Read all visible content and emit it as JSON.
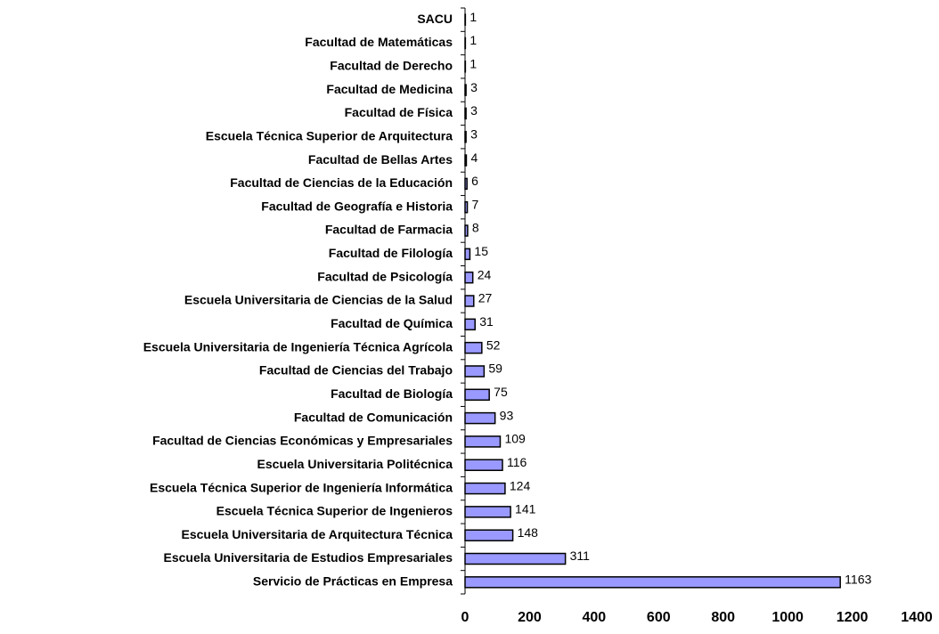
{
  "chart_data": {
    "type": "barh",
    "categories": [
      "SACU",
      "Facultad de Matemáticas",
      "Facultad de Derecho",
      "Facultad de Medicina",
      "Facultad de Física",
      "Escuela Técnica Superior de Arquitectura",
      "Facultad de Bellas Artes",
      "Facultad de Ciencias de la Educación",
      "Facultad de Geografía e Historia",
      "Facultad de Farmacia",
      "Facultad de Filología",
      "Facultad de Psicología",
      "Escuela Universitaria de Ciencias de la Salud",
      "Facultad de Química",
      "Escuela Universitaria de Ingeniería Técnica Agrícola",
      "Facultad de Ciencias del Trabajo",
      "Facultad de Biología",
      "Facultad de Comunicación",
      "Facultad de Ciencias Económicas y Empresariales",
      "Escuela Universitaria Politécnica",
      "Escuela Técnica Superior de Ingeniería Informática",
      "Escuela Técnica Superior de Ingenieros",
      "Escuela Universitaria de Arquitectura Técnica",
      "Escuela Universitaria de Estudios Empresariales",
      "Servicio de Prácticas en Empresa"
    ],
    "values": [
      1,
      1,
      1,
      3,
      3,
      3,
      4,
      6,
      7,
      8,
      15,
      24,
      27,
      31,
      52,
      59,
      75,
      93,
      109,
      116,
      124,
      141,
      148,
      311,
      1163
    ],
    "color": "#9999ff",
    "xlim": [
      0,
      1400
    ],
    "xticks": [
      0,
      200,
      400,
      600,
      800,
      1000,
      1200,
      1400
    ]
  }
}
